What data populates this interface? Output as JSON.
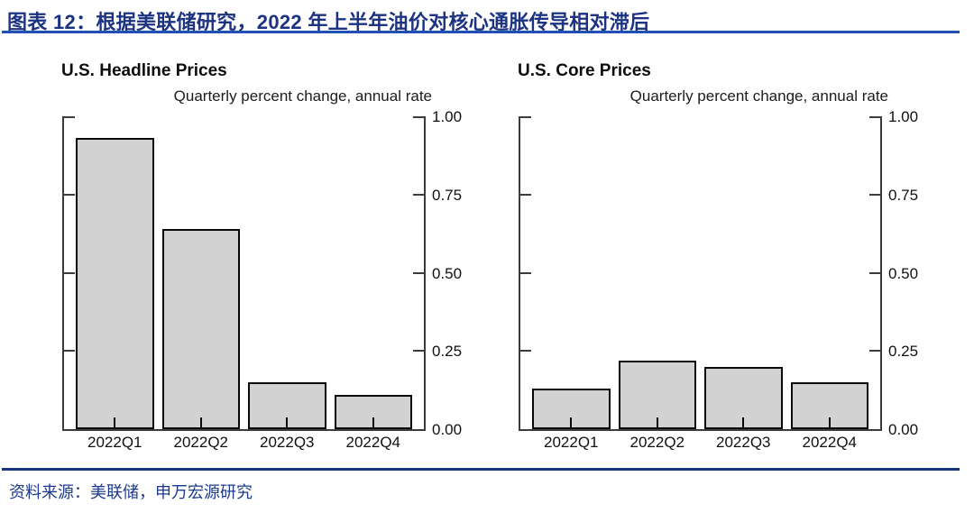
{
  "page": {
    "header": {
      "title": "图表 12：根据美联储研究，2022 年上半年油价对核心通胀传导相对滞后"
    },
    "footer": {
      "source": "资料来源：美联储，申万宏源研究"
    },
    "colors": {
      "header_text": "#1B3380",
      "header_rule": "#2150B5",
      "footer_rule": "#17367F",
      "footer_text": "#1D3A8C",
      "bar_fill": "#D2D2D2",
      "bar_border": "#0A0A0A",
      "axis": "#3C3C3C"
    }
  },
  "chart_data": [
    {
      "type": "bar",
      "title": "U.S. Headline Prices",
      "subtitle": "Quarterly percent change, annual rate",
      "categories": [
        "2022Q1",
        "2022Q2",
        "2022Q3",
        "2022Q4"
      ],
      "values": [
        0.93,
        0.64,
        0.15,
        0.11
      ],
      "xlabel": "",
      "ylabel": "",
      "ylim": [
        0,
        1.0
      ],
      "yticks": [
        "0.00",
        "0.25",
        "0.50",
        "0.75",
        "1.00"
      ],
      "grid": false,
      "legend_position": "none",
      "y_axis_label_side": "right"
    },
    {
      "type": "bar",
      "title": "U.S. Core Prices",
      "subtitle": "Quarterly percent change, annual rate",
      "categories": [
        "2022Q1",
        "2022Q2",
        "2022Q3",
        "2022Q4"
      ],
      "values": [
        0.13,
        0.22,
        0.2,
        0.15
      ],
      "xlabel": "",
      "ylabel": "",
      "ylim": [
        0,
        1.0
      ],
      "yticks": [
        "0.00",
        "0.25",
        "0.50",
        "0.75",
        "1.00"
      ],
      "grid": false,
      "legend_position": "none",
      "y_axis_label_side": "right"
    }
  ]
}
